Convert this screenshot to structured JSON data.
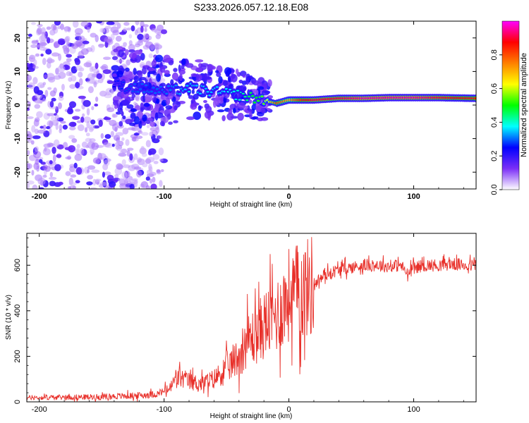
{
  "figure": {
    "title": "S233.2026.057.12.18.E08"
  },
  "chart_data": [
    {
      "type": "heatmap",
      "name": "spectrogram",
      "xlabel": "Height of straight line (km)",
      "ylabel": "Frequency (Hz)",
      "xlim": [
        -210,
        150
      ],
      "ylim": [
        -25,
        25
      ],
      "xticks": [
        -200,
        -100,
        0,
        100
      ],
      "xtick_labels": [
        "-200",
        "-100",
        "0",
        "100"
      ],
      "yticks": [
        -20,
        -10,
        0,
        10,
        20
      ],
      "ytick_labels": [
        "-20",
        "-10",
        "0",
        "10",
        "20"
      ],
      "colorbar": {
        "label": "Normalized spectral amplitude",
        "range": [
          0.0,
          1.0
        ],
        "ticks": [
          0.0,
          0.2,
          0.4,
          0.6,
          0.8
        ],
        "tick_labels": [
          "0.0",
          "0.2",
          "0.4",
          "0.6",
          "0.8"
        ],
        "colormap": [
          "#ffffff",
          "#7b2ff7",
          "#0000ff",
          "#00ffff",
          "#00ff00",
          "#ffff00",
          "#ff8000",
          "#ff0000",
          "#ff00ff"
        ]
      },
      "ridge": {
        "description": "dominant frequency trace",
        "x": [
          -140,
          -120,
          -100,
          -80,
          -60,
          -40,
          -20,
          -10,
          0,
          10,
          20,
          40,
          60,
          80,
          100,
          120,
          150
        ],
        "frequency_hz": [
          6,
          5,
          4,
          5,
          4,
          3,
          1.5,
          0.5,
          1.5,
          1.5,
          1.5,
          2,
          2,
          2.2,
          2.2,
          2.2,
          2
        ],
        "amplitude": [
          0.25,
          0.3,
          0.3,
          0.35,
          0.35,
          0.4,
          0.55,
          0.8,
          0.7,
          0.85,
          0.9,
          0.9,
          0.95,
          0.95,
          0.95,
          0.9,
          0.85
        ]
      }
    },
    {
      "type": "line",
      "name": "snr",
      "xlabel": "Height of straight line (km)",
      "ylabel": "SNR (10 * v/v)",
      "xlim": [
        -210,
        150
      ],
      "ylim": [
        0,
        740
      ],
      "xticks": [
        -200,
        -100,
        0,
        100
      ],
      "xtick_labels": [
        "-200",
        "-100",
        "0",
        "100"
      ],
      "yticks": [
        0,
        200,
        400,
        600
      ],
      "ytick_labels": [
        "0",
        "200",
        "400",
        "600"
      ],
      "series": [
        {
          "name": "SNR",
          "color": "#e8302a",
          "x": [
            -210,
            -180,
            -150,
            -120,
            -105,
            -95,
            -90,
            -80,
            -70,
            -60,
            -50,
            -40,
            -35,
            -30,
            -25,
            -20,
            -15,
            -10,
            -5,
            0,
            5,
            10,
            15,
            20,
            30,
            40,
            50,
            60,
            70,
            80,
            90,
            95,
            100,
            110,
            120,
            130,
            140,
            150
          ],
          "y": [
            18,
            20,
            22,
            28,
            35,
            60,
            110,
            90,
            80,
            100,
            150,
            200,
            260,
            280,
            300,
            340,
            360,
            380,
            420,
            470,
            480,
            490,
            500,
            520,
            560,
            580,
            590,
            600,
            600,
            595,
            600,
            560,
            590,
            600,
            600,
            605,
            600,
            600
          ]
        }
      ]
    }
  ]
}
